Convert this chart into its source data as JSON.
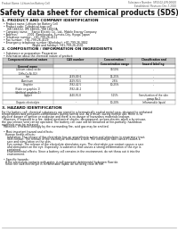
{
  "bg_color": "#f0f0eb",
  "page_bg": "#ffffff",
  "header_left": "Product Name: Lithium Ion Battery Cell",
  "header_right_line1": "Substance Number: SF50-02-LFR-00610",
  "header_right_line2": "Established / Revision: Dec.7.2010",
  "title": "Safety data sheet for chemical products (SDS)",
  "section1_title": "1. PRODUCT AND COMPANY IDENTIFICATION",
  "section1_lines": [
    "  • Product name: Lithium Ion Battery Cell",
    "  • Product code: Cylindrical-type cell",
    "      ISR 18650U, ISR 18650L, ISR 18650A",
    "  • Company name:    Sanyo Electric Co., Ltd., Mobile Energy Company",
    "  • Address:           2001  Kamikosaka, Sumoto-City, Hyogo, Japan",
    "  • Telephone number:  +81-799-26-4111",
    "  • Fax number:  +81-799-26-4129",
    "  • Emergency telephone number (Weekday): +81-799-26-3842",
    "                                  (Night and holiday): +81-799-26-4101"
  ],
  "section2_title": "2. COMPOSITION / INFORMATION ON INGREDIENTS",
  "section2_intro": "  • Substance or preparation: Preparation",
  "section2_sub": "  • Information about the chemical nature of product:",
  "table_headers": [
    "Component/chemical nature",
    "CAS number",
    "Concentration /\nConcentration range",
    "Classification and\nhazard labeling"
  ],
  "table_subheader": "General name",
  "table_rows": [
    [
      "Lithium cobalt oxide\n(LiMn-Co-Ni-O2)",
      "-",
      "30-50%",
      "-"
    ],
    [
      "Iron",
      "7439-89-6",
      "15-25%",
      "-"
    ],
    [
      "Aluminum",
      "7429-90-5",
      "2-6%",
      "-"
    ],
    [
      "Graphite\n(Flake or graphite-1)\n(Artificial graphite-1)",
      "7782-42-5\n7782-44-2",
      "10-25%",
      "-"
    ],
    [
      "Copper",
      "7440-50-8",
      "5-15%",
      "Sensitization of the skin\ngroup No.2"
    ],
    [
      "Organic electrolyte",
      "-",
      "10-20%",
      "Inflammable liquid"
    ]
  ],
  "section3_title": "3. HAZARD IDENTIFICATION",
  "section3_body": [
    "For the battery cell, chemical substances are stored in a hermetically sealed metal case, designed to withstand",
    "temperatures and pressures-combinations during normal use. As a result, during normal use, there is no",
    "physical danger of ignition or explosion and there is no danger of hazardous materials leakage.",
    "  However, if exposed to a fire, added mechanical shocks, decomposed, an/own electric when a by misuse,",
    "the gas release vent can be operated. The battery cell case will be breached at fire-partially, hazardous",
    "materials may be released.",
    "  Moreover, if heated strongly by the surrounding fire, acid gas may be emitted.",
    " ",
    "  • Most important hazard and effects:",
    "    Human health effects:",
    "      Inhalation: The release of the electrolyte has an anaesthesia action and stimulates in respiratory tract.",
    "      Skin contact: The release of the electrolyte stimulates a skin. The electrolyte skin contact causes a",
    "      sore and stimulation on the skin.",
    "      Eye contact: The release of the electrolyte stimulates eyes. The electrolyte eye contact causes a sore",
    "      and stimulation on the eye. Especially, a substance that causes a strong inflammation of the eye is",
    "      contained.",
    "      Environmental effects: Since a battery cell remains in the environment, do not throw out it into the",
    "      environment.",
    " ",
    "  • Specific hazards:",
    "    If the electrolyte contacts with water, it will generate detrimental hydrogen fluoride.",
    "    Since the said electrolyte is inflammable liquid, do not bring close to fire."
  ]
}
